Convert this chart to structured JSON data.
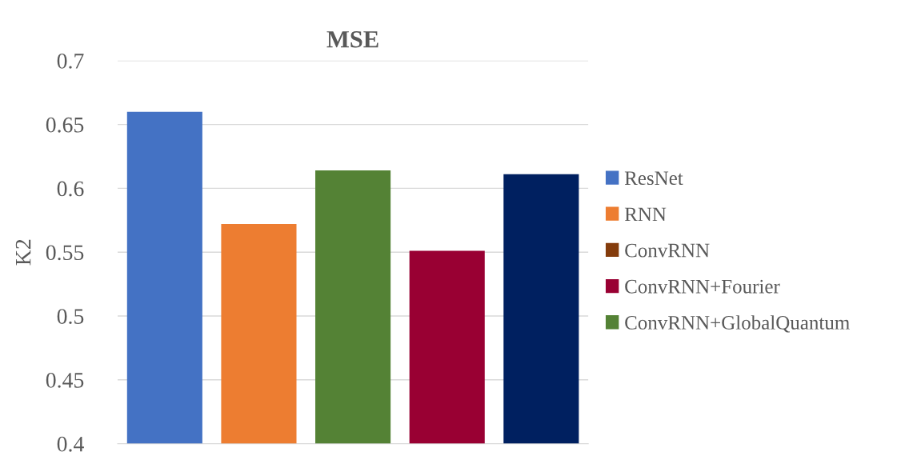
{
  "chart_data": {
    "type": "bar",
    "title": "MSE",
    "ylabel": "K2",
    "categories": [
      null,
      null,
      null,
      null,
      null
    ],
    "series": [
      {
        "name": "ResNet",
        "color": "#4472c4",
        "values": [
          0.66,
          null,
          null,
          null,
          null
        ]
      },
      {
        "name": "RNN",
        "color": "#ed7d31",
        "values": [
          null,
          0.572,
          null,
          null,
          null
        ]
      },
      {
        "name": "ConvRNN",
        "color": "#843c0c",
        "values": [
          null,
          null,
          null,
          null,
          null
        ]
      },
      {
        "name": "ConvRNN+Fourier",
        "color": "#990033",
        "values": [
          null,
          null,
          null,
          0.551,
          null
        ]
      },
      {
        "name": "ConvRNN+GlobalQuantum",
        "color": "#548235",
        "values": [
          null,
          null,
          0.614,
          null,
          null
        ]
      },
      {
        "color": "#002060",
        "values": [
          null,
          null,
          null,
          null,
          0.611
        ]
      }
    ],
    "ylim": [
      0.4,
      0.7
    ],
    "yticks": [
      {
        "value": 0.4,
        "label": "0.4"
      },
      {
        "value": 0.45,
        "label": "0.45"
      },
      {
        "value": 0.5,
        "label": "0.5"
      },
      {
        "value": 0.55,
        "label": "0.55"
      },
      {
        "value": 0.6,
        "label": "0.6"
      },
      {
        "value": 0.65,
        "label": "0.65"
      },
      {
        "value": 0.7,
        "label": "0.7"
      }
    ],
    "grid": "y",
    "legend": "right"
  }
}
